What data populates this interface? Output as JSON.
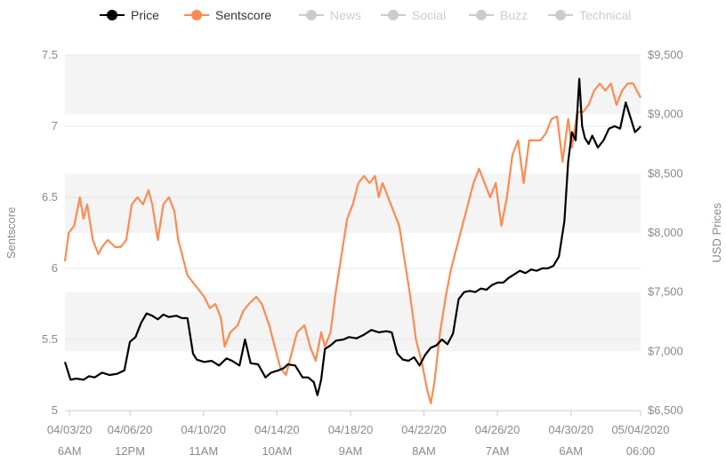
{
  "chart_data": {
    "type": "line",
    "legend_position": "top",
    "legend": [
      {
        "name": "Price",
        "color": "#000000",
        "active": true
      },
      {
        "name": "Sentscore",
        "color": "#ff8a50",
        "active": true
      },
      {
        "name": "News",
        "color": "#cccccc",
        "active": false
      },
      {
        "name": "Social",
        "color": "#cccccc",
        "active": false
      },
      {
        "name": "Buzz",
        "color": "#cccccc",
        "active": false
      },
      {
        "name": "Technical",
        "color": "#cccccc",
        "active": false
      }
    ],
    "y_left": {
      "label": "Sentscore",
      "range": [
        5,
        7.5
      ],
      "ticks": [
        "5",
        "5.5",
        "6",
        "6.5",
        "7",
        "7.5"
      ]
    },
    "y_right": {
      "label": "USD Prices",
      "range": [
        6500,
        9500
      ],
      "ticks": [
        "$6,500",
        "$7,000",
        "$7,500",
        "$8,000",
        "$8,500",
        "$9,000",
        "$9,500"
      ]
    },
    "x": {
      "range": [
        0,
        31.0
      ],
      "ticks": [
        {
          "day": 0.25,
          "date": "04/03/20",
          "time": "6AM"
        },
        {
          "day": 3.5,
          "date": "04/06/20",
          "time": "12PM"
        },
        {
          "day": 7.46,
          "date": "04/10/20",
          "time": "11AM"
        },
        {
          "day": 11.42,
          "date": "04/14/20",
          "time": "10AM"
        },
        {
          "day": 15.38,
          "date": "04/18/20",
          "time": "9AM"
        },
        {
          "day": 19.33,
          "date": "04/22/20",
          "time": "8AM"
        },
        {
          "day": 23.29,
          "date": "04/26/20",
          "time": "7AM"
        },
        {
          "day": 27.25,
          "date": "04/30/20",
          "time": "6AM"
        },
        {
          "day": 31.0,
          "date": "05/04/2020",
          "time": "06:00"
        }
      ]
    },
    "bands": true,
    "series": [
      {
        "name": "Price",
        "axis": "right",
        "color": "#000000",
        "points": [
          [
            0.0,
            6910
          ],
          [
            0.3,
            6760
          ],
          [
            0.6,
            6770
          ],
          [
            1.0,
            6760
          ],
          [
            1.3,
            6790
          ],
          [
            1.6,
            6780
          ],
          [
            2.0,
            6820
          ],
          [
            2.4,
            6800
          ],
          [
            2.8,
            6810
          ],
          [
            3.2,
            6840
          ],
          [
            3.5,
            7080
          ],
          [
            3.8,
            7120
          ],
          [
            4.1,
            7240
          ],
          [
            4.4,
            7320
          ],
          [
            4.7,
            7300
          ],
          [
            5.0,
            7270
          ],
          [
            5.3,
            7310
          ],
          [
            5.6,
            7290
          ],
          [
            6.0,
            7300
          ],
          [
            6.3,
            7280
          ],
          [
            6.6,
            7280
          ],
          [
            6.9,
            6980
          ],
          [
            7.1,
            6930
          ],
          [
            7.5,
            6910
          ],
          [
            7.9,
            6920
          ],
          [
            8.3,
            6880
          ],
          [
            8.7,
            6940
          ],
          [
            9.0,
            6920
          ],
          [
            9.4,
            6880
          ],
          [
            9.7,
            7100
          ],
          [
            10.0,
            6900
          ],
          [
            10.4,
            6890
          ],
          [
            10.8,
            6780
          ],
          [
            11.1,
            6820
          ],
          [
            11.5,
            6840
          ],
          [
            11.8,
            6860
          ],
          [
            12.0,
            6890
          ],
          [
            12.4,
            6880
          ],
          [
            12.8,
            6780
          ],
          [
            13.1,
            6780
          ],
          [
            13.4,
            6740
          ],
          [
            13.6,
            6630
          ],
          [
            13.8,
            6760
          ],
          [
            14.0,
            7020
          ],
          [
            14.3,
            7050
          ],
          [
            14.6,
            7090
          ],
          [
            15.0,
            7100
          ],
          [
            15.3,
            7120
          ],
          [
            15.7,
            7110
          ],
          [
            16.1,
            7140
          ],
          [
            16.5,
            7180
          ],
          [
            16.9,
            7160
          ],
          [
            17.3,
            7170
          ],
          [
            17.6,
            7160
          ],
          [
            17.9,
            6980
          ],
          [
            18.2,
            6930
          ],
          [
            18.5,
            6920
          ],
          [
            18.8,
            6950
          ],
          [
            19.1,
            6880
          ],
          [
            19.4,
            6970
          ],
          [
            19.7,
            7030
          ],
          [
            20.0,
            7050
          ],
          [
            20.3,
            7100
          ],
          [
            20.6,
            7060
          ],
          [
            20.9,
            7150
          ],
          [
            21.2,
            7440
          ],
          [
            21.5,
            7500
          ],
          [
            21.8,
            7510
          ],
          [
            22.1,
            7500
          ],
          [
            22.4,
            7530
          ],
          [
            22.7,
            7520
          ],
          [
            23.0,
            7560
          ],
          [
            23.3,
            7580
          ],
          [
            23.6,
            7580
          ],
          [
            23.9,
            7620
          ],
          [
            24.2,
            7650
          ],
          [
            24.5,
            7680
          ],
          [
            24.8,
            7660
          ],
          [
            25.1,
            7690
          ],
          [
            25.4,
            7680
          ],
          [
            25.7,
            7700
          ],
          [
            26.0,
            7700
          ],
          [
            26.3,
            7720
          ],
          [
            26.6,
            7800
          ],
          [
            26.9,
            8100
          ],
          [
            27.1,
            8600
          ],
          [
            27.3,
            8850
          ],
          [
            27.5,
            8780
          ],
          [
            27.7,
            9300
          ],
          [
            27.85,
            8900
          ],
          [
            28.0,
            8800
          ],
          [
            28.2,
            8750
          ],
          [
            28.4,
            8820
          ],
          [
            28.7,
            8720
          ],
          [
            29.0,
            8780
          ],
          [
            29.3,
            8880
          ],
          [
            29.6,
            8900
          ],
          [
            29.9,
            8880
          ],
          [
            30.2,
            9100
          ],
          [
            30.5,
            8950
          ],
          [
            30.7,
            8850
          ],
          [
            30.9,
            8880
          ],
          [
            31.0,
            8900
          ]
        ]
      },
      {
        "name": "Sentscore",
        "axis": "left",
        "color": "#ff8a50",
        "points": [
          [
            0.0,
            6.05
          ],
          [
            0.2,
            6.25
          ],
          [
            0.5,
            6.3
          ],
          [
            0.8,
            6.5
          ],
          [
            1.0,
            6.35
          ],
          [
            1.2,
            6.45
          ],
          [
            1.5,
            6.2
          ],
          [
            1.8,
            6.1
          ],
          [
            2.0,
            6.15
          ],
          [
            2.3,
            6.2
          ],
          [
            2.7,
            6.15
          ],
          [
            3.0,
            6.15
          ],
          [
            3.3,
            6.2
          ],
          [
            3.6,
            6.45
          ],
          [
            3.9,
            6.5
          ],
          [
            4.2,
            6.45
          ],
          [
            4.5,
            6.55
          ],
          [
            4.7,
            6.45
          ],
          [
            5.0,
            6.2
          ],
          [
            5.3,
            6.45
          ],
          [
            5.6,
            6.5
          ],
          [
            5.9,
            6.4
          ],
          [
            6.1,
            6.2
          ],
          [
            6.3,
            6.1
          ],
          [
            6.6,
            5.95
          ],
          [
            6.9,
            5.9
          ],
          [
            7.2,
            5.85
          ],
          [
            7.5,
            5.8
          ],
          [
            7.8,
            5.72
          ],
          [
            8.1,
            5.75
          ],
          [
            8.4,
            5.65
          ],
          [
            8.6,
            5.45
          ],
          [
            8.9,
            5.55
          ],
          [
            9.3,
            5.6
          ],
          [
            9.6,
            5.7
          ],
          [
            9.9,
            5.75
          ],
          [
            10.3,
            5.8
          ],
          [
            10.6,
            5.75
          ],
          [
            11.0,
            5.6
          ],
          [
            11.3,
            5.45
          ],
          [
            11.6,
            5.3
          ],
          [
            11.9,
            5.25
          ],
          [
            12.2,
            5.4
          ],
          [
            12.5,
            5.55
          ],
          [
            12.9,
            5.6
          ],
          [
            13.2,
            5.45
          ],
          [
            13.5,
            5.35
          ],
          [
            13.8,
            5.55
          ],
          [
            14.0,
            5.45
          ],
          [
            14.3,
            5.55
          ],
          [
            14.6,
            5.85
          ],
          [
            14.9,
            6.1
          ],
          [
            15.2,
            6.35
          ],
          [
            15.5,
            6.45
          ],
          [
            15.8,
            6.6
          ],
          [
            16.1,
            6.65
          ],
          [
            16.4,
            6.6
          ],
          [
            16.7,
            6.65
          ],
          [
            16.9,
            6.5
          ],
          [
            17.1,
            6.6
          ],
          [
            17.4,
            6.5
          ],
          [
            17.7,
            6.4
          ],
          [
            18.0,
            6.3
          ],
          [
            18.3,
            6.05
          ],
          [
            18.6,
            5.8
          ],
          [
            18.9,
            5.5
          ],
          [
            19.2,
            5.35
          ],
          [
            19.5,
            5.15
          ],
          [
            19.7,
            5.05
          ],
          [
            19.9,
            5.2
          ],
          [
            20.2,
            5.55
          ],
          [
            20.5,
            5.8
          ],
          [
            20.8,
            6.0
          ],
          [
            21.1,
            6.15
          ],
          [
            21.4,
            6.3
          ],
          [
            21.7,
            6.45
          ],
          [
            22.0,
            6.6
          ],
          [
            22.3,
            6.7
          ],
          [
            22.6,
            6.6
          ],
          [
            22.9,
            6.5
          ],
          [
            23.2,
            6.6
          ],
          [
            23.5,
            6.3
          ],
          [
            23.8,
            6.5
          ],
          [
            24.1,
            6.8
          ],
          [
            24.4,
            6.9
          ],
          [
            24.7,
            6.6
          ],
          [
            25.0,
            6.9
          ],
          [
            25.3,
            6.9
          ],
          [
            25.6,
            6.9
          ],
          [
            25.9,
            6.95
          ],
          [
            26.2,
            7.05
          ],
          [
            26.5,
            7.07
          ],
          [
            26.8,
            6.75
          ],
          [
            27.1,
            7.05
          ],
          [
            27.3,
            6.85
          ],
          [
            27.6,
            7.1
          ],
          [
            27.9,
            7.1
          ],
          [
            28.2,
            7.15
          ],
          [
            28.5,
            7.25
          ],
          [
            28.8,
            7.3
          ],
          [
            29.1,
            7.25
          ],
          [
            29.4,
            7.3
          ],
          [
            29.7,
            7.15
          ],
          [
            30.0,
            7.25
          ],
          [
            30.3,
            7.3
          ],
          [
            30.6,
            7.3
          ],
          [
            30.8,
            7.25
          ],
          [
            31.0,
            7.2
          ]
        ]
      }
    ]
  }
}
